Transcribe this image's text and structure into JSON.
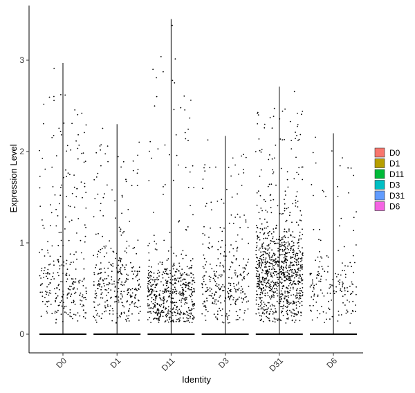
{
  "chart_data": {
    "type": "scatter",
    "subtype": "violin-jitter",
    "title": "",
    "xlabel": "Identity",
    "ylabel": "Expression Level",
    "categories": [
      "D0",
      "D1",
      "D11",
      "D3",
      "D31",
      "D6"
    ],
    "ylim": [
      -0.18,
      3.6
    ],
    "yticks": [
      0,
      1,
      2,
      3
    ],
    "grid": false,
    "legend": {
      "position": "right",
      "entries": [
        "D0",
        "D1",
        "D11",
        "D3",
        "D31",
        "D6"
      ]
    },
    "colors": [
      "#F8766D",
      "#B79F00",
      "#00BA38",
      "#00BFC4",
      "#619CFF",
      "#F564E3"
    ],
    "point_color": "#000000",
    "series": [
      {
        "name": "D0",
        "max": 2.97,
        "nonzero_points": 300,
        "upper_fraction": 0.45
      },
      {
        "name": "D1",
        "max": 2.3,
        "nonzero_points": 330,
        "upper_fraction": 0.3
      },
      {
        "name": "D11",
        "max": 3.45,
        "nonzero_points": 560,
        "upper_fraction": 0.12
      },
      {
        "name": "D3",
        "max": 2.17,
        "nonzero_points": 300,
        "upper_fraction": 0.25
      },
      {
        "name": "D31",
        "max": 2.71,
        "nonzero_points": 950,
        "upper_fraction": 0.16
      },
      {
        "name": "D6",
        "max": 2.2,
        "nonzero_points": 170,
        "upper_fraction": 0.3
      }
    ]
  }
}
